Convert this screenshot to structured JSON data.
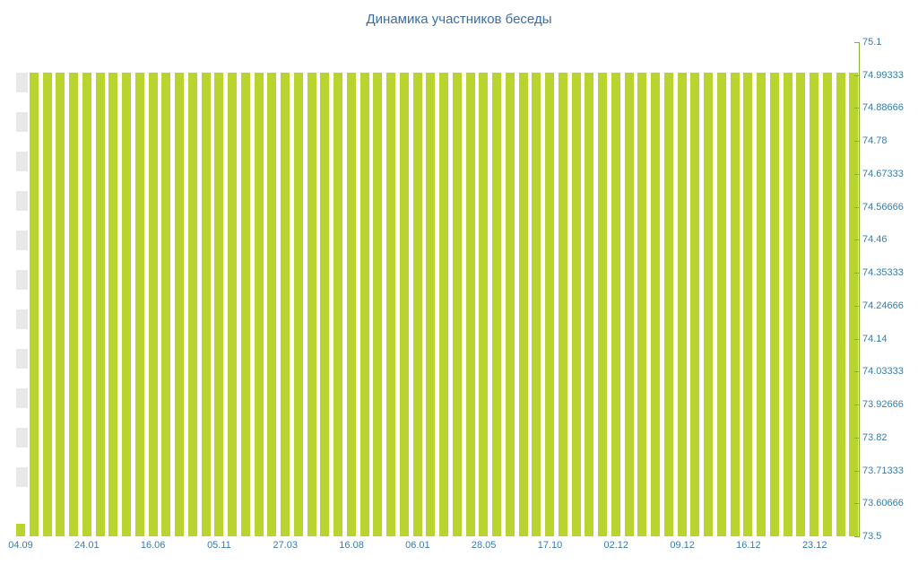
{
  "colors": {
    "bar": "#b9d42f",
    "axis": "#86b32d",
    "label": "#3a7ca5",
    "title": "#3b6ea5",
    "stripe": "#e8e8e8"
  },
  "chart_data": {
    "type": "bar",
    "title": "Динамика участников беседы",
    "ylabel": "",
    "xlabel": "",
    "ylim": [
      73.5,
      75.1
    ],
    "y_axis_side": "right",
    "legend": "none",
    "grid": "off",
    "y_tick_labels": [
      "75.1",
      "74.99333",
      "74.88666",
      "74.78",
      "74.67333",
      "74.56666",
      "74.46",
      "74.35333",
      "74.24666",
      "74.14",
      "74.03333",
      "73.92666",
      "73.82",
      "73.71333",
      "73.60666",
      "73.5"
    ],
    "x_tick_labels": [
      "04.09",
      "24.01",
      "16.06",
      "05.11",
      "27.03",
      "16.08",
      "06.01",
      "28.05",
      "17.10",
      "02.12",
      "09.12",
      "16.12",
      "23.12"
    ],
    "x_tick_every": 5,
    "values": [
      73.54,
      75,
      75,
      75,
      75,
      75,
      75,
      75,
      75,
      75,
      75,
      75,
      75,
      75,
      75,
      75,
      75,
      75,
      75,
      75,
      75,
      75,
      75,
      75,
      75,
      75,
      75,
      75,
      75,
      75,
      75,
      75,
      75,
      75,
      75,
      75,
      75,
      75,
      75,
      75,
      75,
      75,
      75,
      75,
      75,
      75,
      75,
      75,
      75,
      75,
      75,
      75,
      75,
      75,
      75,
      75,
      75,
      75,
      75,
      75,
      75,
      75,
      75,
      75
    ]
  }
}
